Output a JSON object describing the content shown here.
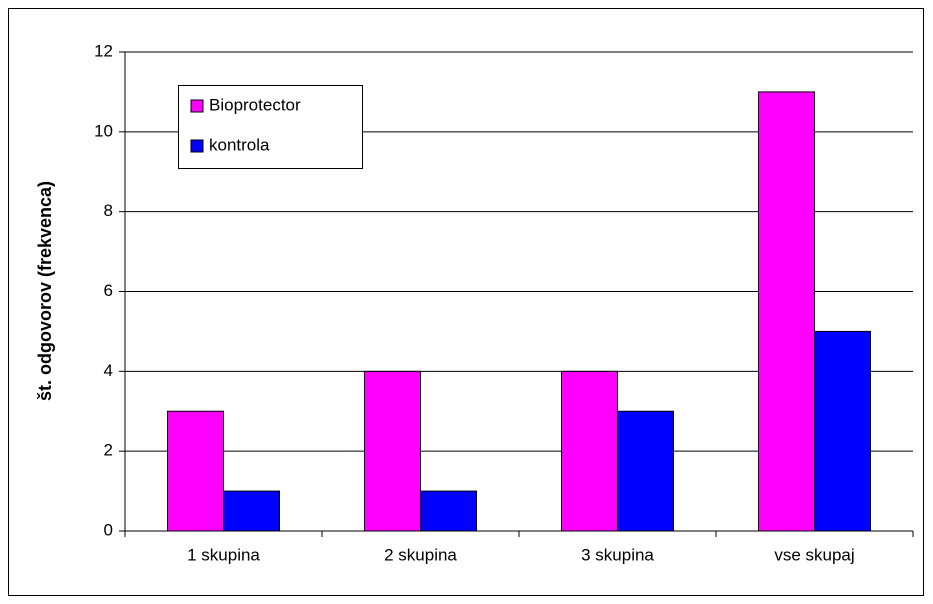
{
  "chart_data": {
    "type": "bar",
    "y_label": "št. odgovorov (frekvenca)",
    "categories": [
      "1 skupina",
      "2 skupina",
      "3 skupina",
      "vse skupaj"
    ],
    "series": [
      {
        "name": "Bioprotector",
        "color": "#ff00ff",
        "values": [
          3,
          4,
          4,
          11
        ]
      },
      {
        "name": "kontrola",
        "color": "#0000ff",
        "values": [
          1,
          1,
          3,
          5
        ]
      }
    ],
    "ylim": [
      0,
      12
    ],
    "yticks": [
      0,
      2,
      4,
      6,
      8,
      10,
      12
    ],
    "grid": true,
    "legend": "upper left"
  }
}
